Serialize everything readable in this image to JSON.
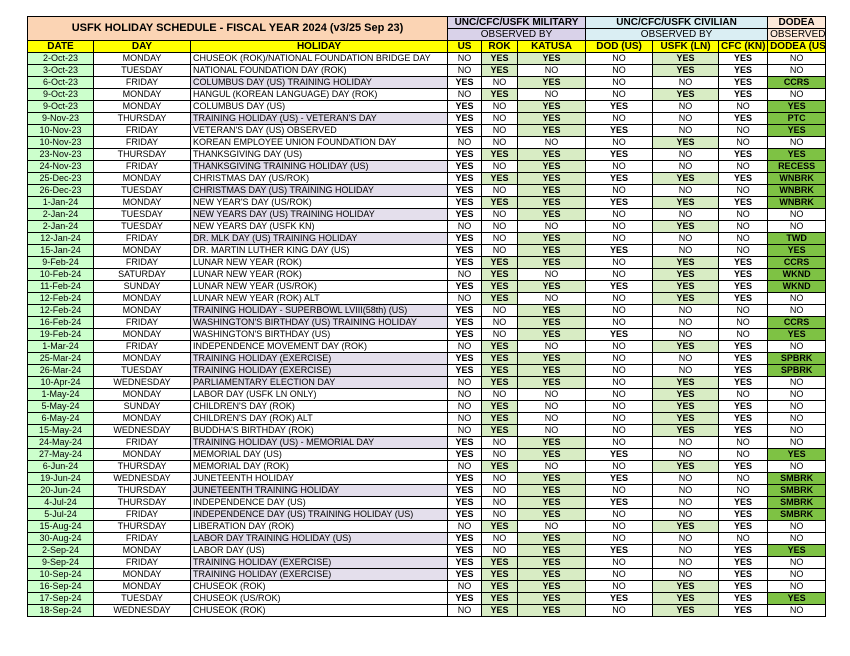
{
  "title": "USFK HOLIDAY SCHEDULE - FISCAL YEAR 2024 (v3/25 Sep 23)",
  "groups": {
    "military": "UNC/CFC/USFK MILITARY",
    "civilian": "UNC/CFC/USFK CIVILIAN",
    "dodea": "DODEA"
  },
  "observed_by": {
    "military": "OBSERVED BY",
    "civilian": "OBSERVED BY",
    "dodea": "OBSERVED BY"
  },
  "columns": [
    "DATE",
    "DAY",
    "HOLIDAY",
    "US",
    "ROK",
    "KATUSA",
    "DOD (US)",
    "USFK (LN)",
    "CFC (KN)",
    "DODEA (US)"
  ],
  "rows": [
    [
      "2-Oct-23",
      "MONDAY",
      "CHUSEOK (ROK)/NATIONAL FOUNDATION BRIDGE DAY",
      "NO",
      "YES",
      "YES",
      "NO",
      "YES",
      "YES",
      "NO"
    ],
    [
      "3-Oct-23",
      "TUESDAY",
      "NATIONAL FOUNDATION DAY (ROK)",
      "NO",
      "YES",
      "NO",
      "NO",
      "YES",
      "YES",
      "NO"
    ],
    [
      "6-Oct-23",
      "FRIDAY",
      "COLUMBUS DAY (US) TRAINING HOLIDAY",
      "YES",
      "NO",
      "YES",
      "NO",
      "NO",
      "YES",
      "CCRS"
    ],
    [
      "9-Oct-23",
      "MONDAY",
      "HANGUL (KOREAN LANGUAGE) DAY (ROK)",
      "NO",
      "YES",
      "NO",
      "NO",
      "YES",
      "YES",
      "NO"
    ],
    [
      "9-Oct-23",
      "MONDAY",
      "COLUMBUS DAY (US)",
      "YES",
      "NO",
      "YES",
      "YES",
      "NO",
      "NO",
      "YES"
    ],
    [
      "9-Nov-23",
      "THURSDAY",
      "TRAINING HOLIDAY (US) - VETERAN'S DAY",
      "YES",
      "NO",
      "YES",
      "NO",
      "NO",
      "YES",
      "PTC"
    ],
    [
      "10-Nov-23",
      "FRIDAY",
      "VETERAN'S DAY (US) OBSERVED",
      "YES",
      "NO",
      "YES",
      "YES",
      "NO",
      "NO",
      "YES"
    ],
    [
      "10-Nov-23",
      "FRIDAY",
      "KOREAN EMPLOYEE UNION FOUNDATION DAY",
      "NO",
      "NO",
      "NO",
      "NO",
      "YES",
      "NO",
      "NO"
    ],
    [
      "23-Nov-23",
      "THURSDAY",
      "THANKSGIVING DAY (US)",
      "YES",
      "YES",
      "YES",
      "YES",
      "NO",
      "YES",
      "YES"
    ],
    [
      "24-Nov-23",
      "FRIDAY",
      "THANKSGIVING TRAINING HOLIDAY (US)",
      "YES",
      "NO",
      "YES",
      "NO",
      "NO",
      "NO",
      "RECESS"
    ],
    [
      "25-Dec-23",
      "MONDAY",
      "CHRISTMAS DAY (US/ROK)",
      "YES",
      "YES",
      "YES",
      "YES",
      "YES",
      "YES",
      "WNBRK"
    ],
    [
      "26-Dec-23",
      "TUESDAY",
      "CHRISTMAS DAY (US) TRAINING HOLIDAY",
      "YES",
      "NO",
      "YES",
      "NO",
      "NO",
      "NO",
      "WNBRK"
    ],
    [
      "1-Jan-24",
      "MONDAY",
      "NEW YEAR'S DAY (US/ROK)",
      "YES",
      "YES",
      "YES",
      "YES",
      "YES",
      "YES",
      "WNBRK"
    ],
    [
      "2-Jan-24",
      "TUESDAY",
      "NEW YEARS DAY (US) TRAINING HOLIDAY",
      "YES",
      "NO",
      "YES",
      "NO",
      "NO",
      "NO",
      "NO"
    ],
    [
      "2-Jan-24",
      "TUESDAY",
      "NEW YEARS DAY (USFK KN)",
      "NO",
      "NO",
      "NO",
      "NO",
      "YES",
      "NO",
      "NO"
    ],
    [
      "12-Jan-24",
      "FRIDAY",
      "DR. MLK DAY (US) TRAINING HOLIDAY",
      "YES",
      "NO",
      "YES",
      "NO",
      "NO",
      "NO",
      "TWD"
    ],
    [
      "15-Jan-24",
      "MONDAY",
      "DR. MARTIN LUTHER KING DAY (US)",
      "YES",
      "NO",
      "YES",
      "YES",
      "NO",
      "NO",
      "YES"
    ],
    [
      "9-Feb-24",
      "FRIDAY",
      "LUNAR NEW YEAR (ROK)",
      "YES",
      "YES",
      "YES",
      "NO",
      "YES",
      "YES",
      "CCRS"
    ],
    [
      "10-Feb-24",
      "SATURDAY",
      "LUNAR NEW YEAR (ROK)",
      "NO",
      "YES",
      "NO",
      "NO",
      "YES",
      "YES",
      "WKND"
    ],
    [
      "11-Feb-24",
      "SUNDAY",
      "LUNAR NEW YEAR (US/ROK)",
      "YES",
      "YES",
      "YES",
      "YES",
      "YES",
      "YES",
      "WKND"
    ],
    [
      "12-Feb-24",
      "MONDAY",
      "LUNAR NEW YEAR (ROK) ALT",
      "NO",
      "YES",
      "NO",
      "NO",
      "YES",
      "YES",
      "NO"
    ],
    [
      "12-Feb-24",
      "MONDAY",
      "TRAINING HOLIDAY - SUPERBOWL LVIII(58th) (US)",
      "YES",
      "NO",
      "YES",
      "NO",
      "NO",
      "NO",
      "NO"
    ],
    [
      "16-Feb-24",
      "FRIDAY",
      "WASHINGTON'S BIRTHDAY (US) TRAINING HOLIDAY",
      "YES",
      "NO",
      "YES",
      "NO",
      "NO",
      "NO",
      "CCRS"
    ],
    [
      "19-Feb-24",
      "MONDAY",
      "WASHINGTON'S BIRTHDAY (US)",
      "YES",
      "NO",
      "YES",
      "YES",
      "NO",
      "NO",
      "YES"
    ],
    [
      "1-Mar-24",
      "FRIDAY",
      "INDEPENDENCE MOVEMENT DAY (ROK)",
      "NO",
      "YES",
      "NO",
      "NO",
      "YES",
      "YES",
      "NO"
    ],
    [
      "25-Mar-24",
      "MONDAY",
      "TRAINING HOLIDAY (EXERCISE)",
      "YES",
      "YES",
      "YES",
      "NO",
      "NO",
      "YES",
      "SPBRK"
    ],
    [
      "26-Mar-24",
      "TUESDAY",
      "TRAINING HOLIDAY (EXERCISE)",
      "YES",
      "YES",
      "YES",
      "NO",
      "NO",
      "YES",
      "SPBRK"
    ],
    [
      "10-Apr-24",
      "WEDNESDAY",
      "PARLIAMENTARY ELECTION DAY",
      "NO",
      "YES",
      "YES",
      "NO",
      "YES",
      "YES",
      "NO"
    ],
    [
      "1-May-24",
      "MONDAY",
      "LABOR DAY (USFK LN ONLY)",
      "NO",
      "NO",
      "NO",
      "NO",
      "YES",
      "NO",
      "NO"
    ],
    [
      "5-May-24",
      "SUNDAY",
      "CHILDREN'S DAY (ROK)",
      "NO",
      "YES",
      "NO",
      "NO",
      "YES",
      "YES",
      "NO"
    ],
    [
      "6-May-24",
      "MONDAY",
      "CHILDREN'S DAY (ROK) ALT",
      "NO",
      "YES",
      "NO",
      "NO",
      "YES",
      "YES",
      "NO"
    ],
    [
      "15-May-24",
      "WEDNESDAY",
      "BUDDHA'S BIRTHDAY (ROK)",
      "NO",
      "YES",
      "NO",
      "NO",
      "YES",
      "YES",
      "NO"
    ],
    [
      "24-May-24",
      "FRIDAY",
      "TRAINING HOLIDAY (US) - MEMORIAL DAY",
      "YES",
      "NO",
      "YES",
      "NO",
      "NO",
      "NO",
      "NO"
    ],
    [
      "27-May-24",
      "MONDAY",
      "MEMORIAL DAY (US)",
      "YES",
      "NO",
      "YES",
      "YES",
      "NO",
      "NO",
      "YES"
    ],
    [
      "6-Jun-24",
      "THURSDAY",
      "MEMORIAL DAY (ROK)",
      "NO",
      "YES",
      "NO",
      "NO",
      "YES",
      "YES",
      "NO"
    ],
    [
      "19-Jun-24",
      "WEDNESDAY",
      "JUNETEENTH HOLIDAY",
      "YES",
      "NO",
      "YES",
      "YES",
      "NO",
      "NO",
      "SMBRK"
    ],
    [
      "20-Jun-24",
      "THURSDAY",
      "JUNETEENTH TRAINING HOLIDAY",
      "YES",
      "NO",
      "YES",
      "NO",
      "NO",
      "NO",
      "SMBRK"
    ],
    [
      "4-Jul-24",
      "THURSDAY",
      "INDEPENDENCE DAY (US)",
      "YES",
      "NO",
      "YES",
      "YES",
      "NO",
      "YES",
      "SMBRK"
    ],
    [
      "5-Jul-24",
      "FRIDAY",
      "INDEPENDENCE DAY (US) TRAINING HOLIDAY (US)",
      "YES",
      "NO",
      "YES",
      "NO",
      "NO",
      "YES",
      "SMBRK"
    ],
    [
      "15-Aug-24",
      "THURSDAY",
      "LIBERATION DAY (ROK)",
      "NO",
      "YES",
      "NO",
      "NO",
      "YES",
      "YES",
      "NO"
    ],
    [
      "30-Aug-24",
      "FRIDAY",
      " LABOR DAY TRAINING HOLIDAY (US)",
      "YES",
      "NO",
      "YES",
      "NO",
      "NO",
      "NO",
      "NO"
    ],
    [
      "2-Sep-24",
      "MONDAY",
      "LABOR DAY (US)",
      "YES",
      "NO",
      "YES",
      "YES",
      "NO",
      "YES",
      "YES"
    ],
    [
      "9-Sep-24",
      "FRIDAY",
      "TRAINING HOLIDAY (EXERCISE)",
      "YES",
      "YES",
      "YES",
      "NO",
      "NO",
      "YES",
      "NO"
    ],
    [
      "10-Sep-24",
      "MONDAY",
      "TRAINING HOLIDAY (EXERCISE)",
      "YES",
      "YES",
      "YES",
      "NO",
      "NO",
      "YES",
      "NO"
    ],
    [
      "16-Sep-24",
      "MONDAY",
      "CHUSEOK (ROK)",
      "NO",
      "YES",
      "YES",
      "NO",
      "YES",
      "YES",
      "NO"
    ],
    [
      "17-Sep-24",
      "TUESDAY",
      "CHUSEOK (US/ROK)",
      "YES",
      "YES",
      "YES",
      "YES",
      "YES",
      "YES",
      "YES"
    ],
    [
      "18-Sep-24",
      "WEDNESDAY",
      "CHUSEOK (ROK)",
      "NO",
      "YES",
      "YES",
      "NO",
      "YES",
      "YES",
      "NO"
    ]
  ],
  "highlighted_holiday_rows": [
    2,
    5,
    9,
    11,
    13,
    15,
    21,
    22,
    25,
    26,
    27,
    32,
    36,
    38,
    40,
    42,
    43
  ]
}
